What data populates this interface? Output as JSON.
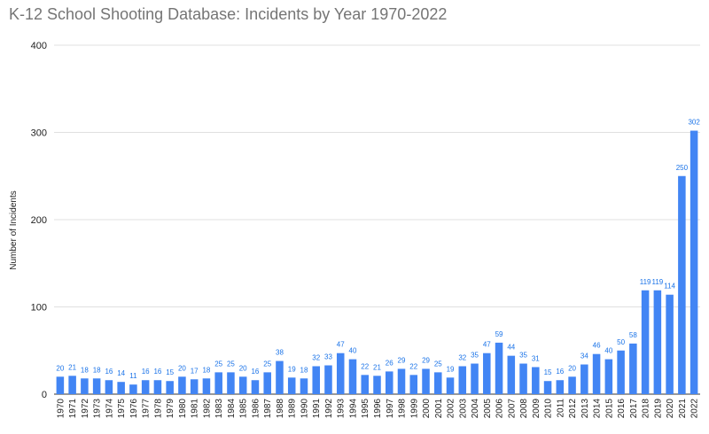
{
  "chart_data": {
    "type": "bar",
    "title": "K-12 School Shooting Database: Incidents by Year 1970-2022",
    "xlabel": "",
    "ylabel": "Number of Incidents",
    "ylim": [
      0,
      400
    ],
    "yticks": [
      0,
      100,
      200,
      300,
      400
    ],
    "grid": true,
    "bar_color": "#4285f4",
    "label_color": "#1a73e8",
    "categories": [
      "1970",
      "1971",
      "1972",
      "1973",
      "1974",
      "1975",
      "1976",
      "1977",
      "1978",
      "1979",
      "1980",
      "1981",
      "1982",
      "1983",
      "1984",
      "1985",
      "1986",
      "1987",
      "1988",
      "1989",
      "1990",
      "1991",
      "1992",
      "1993",
      "1994",
      "1995",
      "1996",
      "1997",
      "1998",
      "1999",
      "2000",
      "2001",
      "2002",
      "2003",
      "2004",
      "2005",
      "2006",
      "2007",
      "2008",
      "2009",
      "2010",
      "2011",
      "2012",
      "2013",
      "2014",
      "2015",
      "2016",
      "2017",
      "2018",
      "2019",
      "2020",
      "2021",
      "2022"
    ],
    "values": [
      20,
      21,
      18,
      18,
      16,
      14,
      11,
      16,
      16,
      15,
      20,
      17,
      18,
      25,
      25,
      20,
      16,
      25,
      38,
      19,
      18,
      32,
      33,
      47,
      40,
      22,
      21,
      26,
      29,
      22,
      29,
      25,
      19,
      32,
      35,
      47,
      59,
      44,
      35,
      31,
      15,
      16,
      20,
      34,
      46,
      40,
      50,
      58,
      119,
      119,
      114,
      250,
      302
    ]
  }
}
